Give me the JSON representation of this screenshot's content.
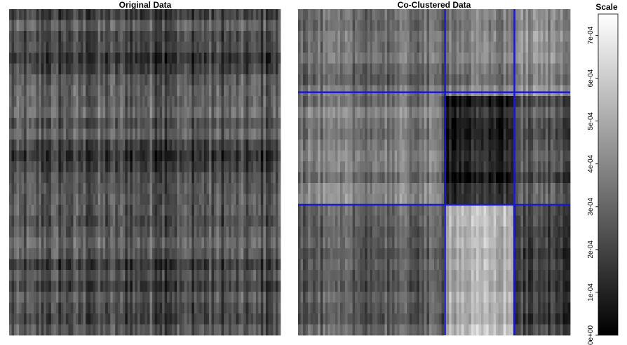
{
  "chart_data": [
    {
      "type": "heatmap",
      "title": "Original Data",
      "rows": 30,
      "cols": 110,
      "color_scale": "grayscale",
      "value_range": [
        0,
        0.00075
      ]
    },
    {
      "type": "heatmap",
      "title": "Co-Clustered Data",
      "rows": 30,
      "cols": 110,
      "color_scale": "grayscale",
      "value_range": [
        0,
        0.00075
      ],
      "cluster_divider_color": "#1a1acc",
      "row_cluster_boundaries": [
        0.255,
        0.6
      ],
      "col_cluster_boundaries": [
        0.54,
        0.795
      ],
      "block_means": [
        [
          0.00031,
          0.00036,
          0.0004
        ],
        [
          0.00035,
          0.0001,
          0.00024
        ],
        [
          0.00026,
          0.00052,
          0.00018
        ]
      ]
    }
  ],
  "legend": {
    "title": "Scale",
    "ticks": [
      "0e+00",
      "1e-04",
      "2e-04",
      "3e-04",
      "4e-04",
      "5e-04",
      "6e-04",
      "7e-04"
    ],
    "tick_values": [
      0,
      0.0001,
      0.0002,
      0.0003,
      0.0004,
      0.0005,
      0.0006,
      0.0007
    ],
    "range": [
      0,
      0.00075
    ]
  }
}
